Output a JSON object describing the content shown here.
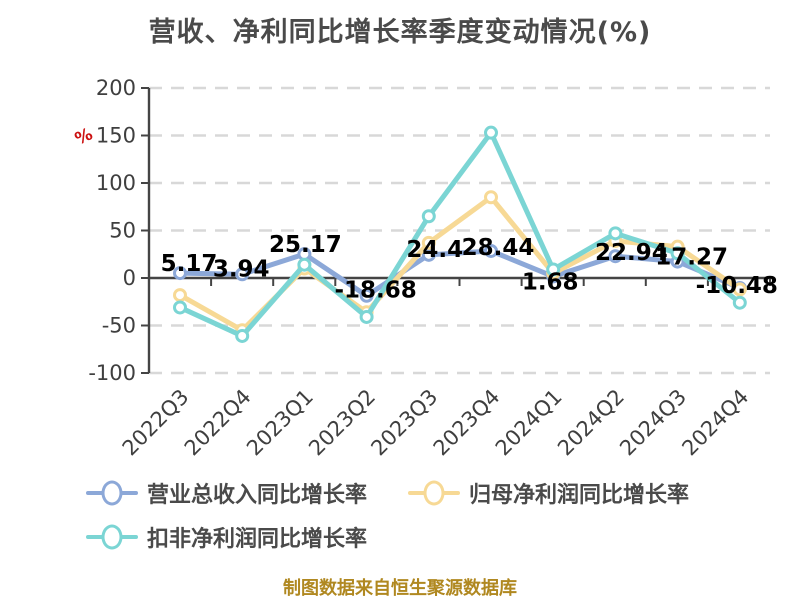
{
  "title": "营收、净利同比增长率季度变动情况(%)",
  "footer": "制图数据来自恒生聚源数据库",
  "y_axis_unit": "%",
  "colors": {
    "title": "#4a4a4a",
    "axis": "#444444",
    "tick_label": "#3f3f3f",
    "grid": "#d8d8d8",
    "data_label": "#000000",
    "unit_red": "#cc1111",
    "footer": "#b08820",
    "background": "#ffffff"
  },
  "chart_data": {
    "type": "line",
    "title": "营收、净利同比增长率季度变动情况(%)",
    "xlabel": "",
    "ylabel": "%",
    "ylim": [
      -100,
      200
    ],
    "y_ticks": [
      200,
      150,
      100,
      50,
      0,
      -50,
      -100
    ],
    "grid": "horizontal-dashed",
    "legend_position": "bottom-left",
    "categories": [
      "2022Q3",
      "2022Q4",
      "2023Q1",
      "2023Q2",
      "2023Q3",
      "2023Q4",
      "2024Q1",
      "2024Q2",
      "2024Q3",
      "2024Q4"
    ],
    "series": [
      {
        "name": "营业总收入同比增长率",
        "color": "#8ca8d8",
        "values": [
          5.17,
          3.94,
          25.17,
          -18.68,
          24.4,
          28.44,
          1.68,
          22.94,
          17.27,
          -10.48
        ],
        "labels": [
          "5.17",
          "3.94",
          "25.17",
          "-18.68",
          "24.4",
          "28.44",
          "1.68",
          "22.94",
          "17.27",
          "-10.48"
        ],
        "labeled": true
      },
      {
        "name": "归母净利润同比增长率",
        "color": "#f7d995",
        "values": [
          -18,
          -55,
          10,
          -36,
          37,
          85,
          5,
          39,
          33,
          -12
        ],
        "labeled": false
      },
      {
        "name": "扣非净利润同比增长率",
        "color": "#7bd5d4",
        "values": [
          -31,
          -61,
          14,
          -41,
          65,
          153,
          9,
          47,
          26,
          -26
        ],
        "labeled": false
      }
    ]
  }
}
